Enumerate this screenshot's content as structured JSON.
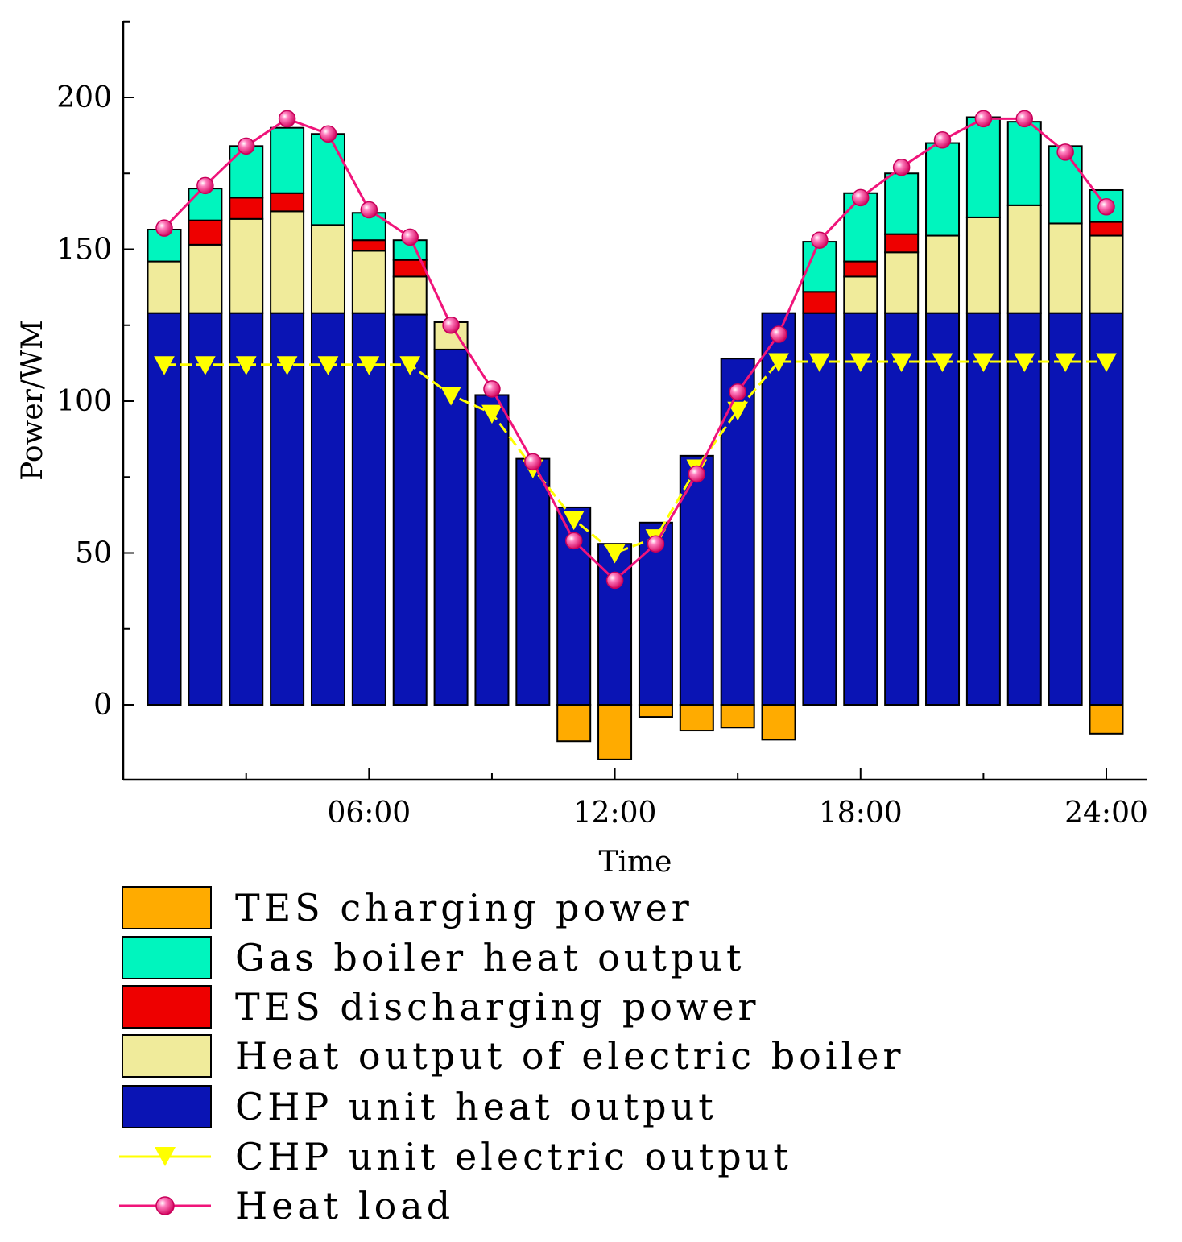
{
  "chart_data": {
    "type": "bar",
    "title": "",
    "xlabel": "Time",
    "ylabel": "Power/WM",
    "ylim": [
      -25,
      225
    ],
    "yticks": [
      0,
      50,
      100,
      150,
      200
    ],
    "xlim": [
      0,
      24.8
    ],
    "xticks": [
      {
        "hour": 6,
        "label": "06:00"
      },
      {
        "hour": 12,
        "label": "12:00"
      },
      {
        "hour": 18,
        "label": "18:00"
      },
      {
        "hour": 24,
        "label": "24:00"
      }
    ],
    "hours": [
      1,
      2,
      3,
      4,
      5,
      6,
      7,
      8,
      9,
      10,
      11,
      12,
      13,
      14,
      15,
      16,
      17,
      18,
      19,
      20,
      21,
      22,
      23,
      24
    ],
    "stacked_series": [
      {
        "key": "chp",
        "name": "CHP unit heat output",
        "color": "#0a14b4",
        "values": [
          129,
          129,
          129,
          129,
          129,
          129,
          128.5,
          117,
          102,
          81,
          65,
          53,
          60,
          82,
          114,
          129,
          129,
          129,
          129,
          129,
          129,
          129,
          129,
          129
        ]
      },
      {
        "key": "eboiler",
        "name": "Heat output of electric boiler",
        "color": "#f0eb9b",
        "values": [
          17,
          22.5,
          31,
          33.5,
          29,
          20.5,
          12.5,
          9,
          0,
          0,
          0,
          0,
          0,
          0,
          0,
          0,
          0,
          12,
          20,
          25.5,
          31.5,
          35.5,
          29.5,
          25.5
        ]
      },
      {
        "key": "tes_dis",
        "name": "TES discharging power",
        "color": "#ee0000",
        "values": [
          0,
          8,
          7,
          6,
          0,
          3.5,
          5.5,
          0,
          0,
          0,
          0,
          0,
          0,
          0,
          0,
          0,
          7,
          5,
          6,
          0,
          0,
          0,
          0,
          4.5
        ]
      },
      {
        "key": "gas",
        "name": "Gas boiler heat output",
        "color": "#00f5be",
        "values": [
          10.5,
          10.5,
          17,
          21.5,
          30,
          9,
          6.5,
          0,
          0,
          0,
          0,
          0,
          0,
          0,
          0,
          0,
          16.5,
          22.5,
          20,
          30.5,
          33,
          27.5,
          25.5,
          10.5
        ]
      },
      {
        "key": "tes_chg",
        "name": "TES charging power",
        "color": "#ffab00",
        "negative": true,
        "values": [
          0,
          0,
          0,
          0,
          0,
          0,
          0,
          0,
          0,
          0,
          -12,
          -18,
          -4,
          -8.5,
          -7.5,
          -11.5,
          0,
          0,
          0,
          0,
          0,
          0,
          0,
          -9.5
        ]
      }
    ],
    "line_series": [
      {
        "key": "chp_elec",
        "name": "CHP unit electric output",
        "color": "#ffff00",
        "marker": "triangle-down",
        "values": [
          112,
          112,
          112,
          112,
          112,
          112,
          112,
          102,
          96,
          78,
          61,
          50,
          55,
          78,
          97,
          113,
          113,
          113,
          113,
          113,
          113,
          113,
          113,
          113
        ]
      },
      {
        "key": "heat_load",
        "name": "Heat load",
        "color": "#f0147a",
        "marker": "circle",
        "values": [
          157,
          171,
          184,
          193,
          188,
          163,
          154,
          125,
          104,
          80,
          54,
          41,
          53,
          76,
          103,
          122,
          153,
          167,
          177,
          186,
          193,
          193,
          182,
          164
        ]
      }
    ],
    "legend": {
      "position": "bottom",
      "entries": [
        {
          "name": "TES charging power",
          "kind": "box",
          "color": "#ffab00"
        },
        {
          "name": "Gas boiler heat output",
          "kind": "box",
          "color": "#00f5be"
        },
        {
          "name": "TES discharging power",
          "kind": "box",
          "color": "#ee0000"
        },
        {
          "name": "Heat output of electric boiler",
          "kind": "box",
          "color": "#f0eb9b"
        },
        {
          "name": "CHP unit heat output",
          "kind": "box",
          "color": "#0a14b4"
        },
        {
          "name": "CHP unit electric output",
          "kind": "line-triangle",
          "color": "#ffff00"
        },
        {
          "name": "Heat load",
          "kind": "line-circle",
          "color": "#f0147a"
        }
      ]
    }
  }
}
